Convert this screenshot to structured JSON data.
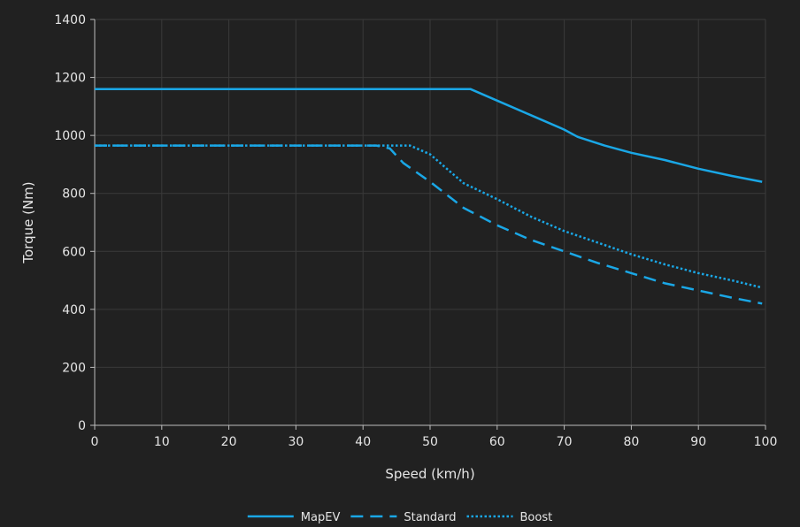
{
  "chart_data": {
    "type": "line",
    "title": "",
    "xlabel": "Speed (km/h)",
    "ylabel": "Torque (Nm)",
    "xlim": [
      0,
      100
    ],
    "ylim": [
      0,
      1400
    ],
    "xticks": [
      0,
      10,
      20,
      30,
      40,
      50,
      60,
      70,
      80,
      90,
      100
    ],
    "yticks": [
      0,
      200,
      400,
      600,
      800,
      1000,
      1200,
      1400
    ],
    "grid": true,
    "legend_position": "bottom-center",
    "series": [
      {
        "name": "MapEV",
        "color": "#1aa7e6",
        "style": "solid",
        "x": [
          0,
          56,
          60,
          65,
          70,
          72,
          76,
          80,
          85,
          90,
          95,
          99.5
        ],
        "y": [
          1160,
          1160,
          1120,
          1070,
          1020,
          995,
          965,
          940,
          915,
          885,
          860,
          840
        ]
      },
      {
        "name": "Standard",
        "color": "#1aa7e6",
        "style": "dashed",
        "x": [
          0,
          42,
          44,
          46,
          50,
          55,
          60,
          65,
          70,
          75,
          80,
          85,
          90,
          95,
          99.5
        ],
        "y": [
          965,
          965,
          955,
          905,
          840,
          750,
          690,
          640,
          600,
          560,
          525,
          490,
          465,
          440,
          420
        ]
      },
      {
        "name": "Boost",
        "color": "#1aa7e6",
        "style": "dotted",
        "x": [
          0,
          47,
          50,
          55,
          60,
          65,
          70,
          75,
          80,
          85,
          90,
          95,
          99.5
        ],
        "y": [
          965,
          965,
          935,
          835,
          780,
          720,
          670,
          630,
          590,
          555,
          525,
          500,
          475
        ]
      }
    ]
  }
}
